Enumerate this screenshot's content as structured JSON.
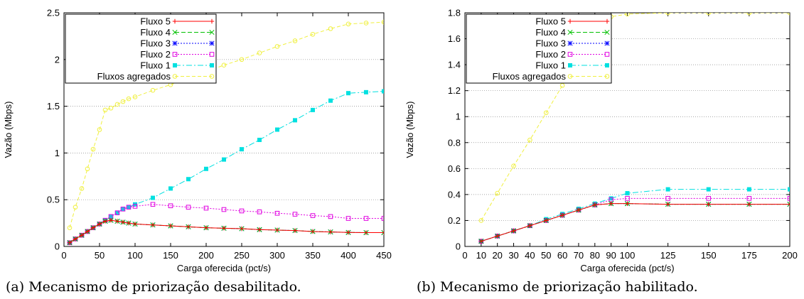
{
  "chart_data": [
    {
      "type": "line",
      "xlabel": "Carga oferecida (pct/s)",
      "ylabel": "Vazão (Mbps)",
      "xlim": [
        0,
        450
      ],
      "ylim": [
        0,
        2.5
      ],
      "xticks": [
        0,
        50,
        100,
        150,
        200,
        250,
        300,
        350,
        400,
        450
      ],
      "yticks": [
        0,
        0.5,
        1,
        1.5,
        2,
        2.5
      ],
      "ytick_labels": [
        "0",
        "0.5",
        "1",
        "1.5",
        "2",
        "2.5"
      ],
      "grid": "horizontal dotted",
      "legend_position": "top-left",
      "caption": "(a) Mecanismo de priorização desabilitado.",
      "series": [
        {
          "name": "Fluxo 5",
          "color": "#ff0000",
          "marker": "plus",
          "dash": "",
          "x": [
            8,
            16,
            25,
            33,
            41,
            50,
            58,
            66,
            75,
            83,
            91,
            100,
            125,
            150,
            175,
            200,
            225,
            250,
            275,
            300,
            325,
            350,
            375,
            400,
            425,
            450
          ],
          "y": [
            0.04,
            0.08,
            0.12,
            0.16,
            0.2,
            0.24,
            0.27,
            0.28,
            0.27,
            0.26,
            0.25,
            0.24,
            0.23,
            0.22,
            0.21,
            0.2,
            0.195,
            0.19,
            0.18,
            0.175,
            0.17,
            0.16,
            0.155,
            0.15,
            0.148,
            0.148
          ]
        },
        {
          "name": "Fluxo 4",
          "color": "#00c000",
          "marker": "x",
          "dash": "6,3",
          "x": [
            8,
            16,
            25,
            33,
            41,
            50,
            58,
            66,
            75,
            83,
            91,
            100,
            125,
            150,
            175,
            200,
            225,
            250,
            275,
            300,
            325,
            350,
            375,
            400,
            425,
            450
          ],
          "y": [
            0.04,
            0.08,
            0.12,
            0.16,
            0.2,
            0.24,
            0.27,
            0.28,
            0.27,
            0.26,
            0.25,
            0.24,
            0.23,
            0.22,
            0.21,
            0.2,
            0.195,
            0.19,
            0.18,
            0.175,
            0.17,
            0.16,
            0.155,
            0.15,
            0.148,
            0.148
          ]
        },
        {
          "name": "Fluxo 3",
          "color": "#0000ff",
          "marker": "star",
          "dash": "2,2",
          "x": [
            8,
            16,
            25,
            33,
            41,
            50,
            58,
            66,
            75,
            83,
            91,
            100,
            125,
            150,
            175,
            200,
            225,
            250,
            275,
            300,
            325,
            350,
            375,
            400,
            425,
            450
          ],
          "y": [
            0.04,
            0.08,
            0.12,
            0.16,
            0.2,
            0.24,
            0.27,
            0.28,
            0.27,
            0.26,
            0.25,
            0.24,
            0.23,
            0.22,
            0.21,
            0.2,
            0.195,
            0.19,
            0.18,
            0.175,
            0.17,
            0.16,
            0.155,
            0.15,
            0.148,
            0.148
          ]
        },
        {
          "name": "Fluxo 2",
          "color": "#e000e0",
          "marker": "square-open",
          "dash": "2,2",
          "x": [
            8,
            16,
            25,
            33,
            41,
            50,
            58,
            66,
            75,
            83,
            91,
            100,
            125,
            150,
            175,
            200,
            225,
            250,
            275,
            300,
            325,
            350,
            375,
            400,
            425,
            450
          ],
          "y": [
            0.04,
            0.08,
            0.12,
            0.16,
            0.2,
            0.24,
            0.28,
            0.32,
            0.36,
            0.4,
            0.42,
            0.43,
            0.45,
            0.435,
            0.42,
            0.41,
            0.395,
            0.38,
            0.37,
            0.355,
            0.345,
            0.33,
            0.32,
            0.3,
            0.3,
            0.3
          ]
        },
        {
          "name": "Fluxo 1",
          "color": "#00e0e0",
          "marker": "square",
          "dash": "8,3,2,3",
          "x": [
            8,
            16,
            25,
            33,
            41,
            50,
            58,
            66,
            75,
            83,
            91,
            100,
            125,
            150,
            175,
            200,
            225,
            250,
            275,
            300,
            325,
            350,
            375,
            400,
            425,
            450
          ],
          "y": [
            0.04,
            0.08,
            0.12,
            0.16,
            0.2,
            0.24,
            0.28,
            0.32,
            0.36,
            0.4,
            0.42,
            0.45,
            0.52,
            0.62,
            0.72,
            0.83,
            0.93,
            1.04,
            1.14,
            1.25,
            1.35,
            1.46,
            1.56,
            1.64,
            1.65,
            1.66
          ]
        },
        {
          "name": "Fluxos agregados",
          "color": "#f0f040",
          "marker": "circle-open",
          "dash": "5,3",
          "x": [
            8,
            16,
            25,
            33,
            41,
            50,
            58,
            66,
            75,
            83,
            91,
            100,
            125,
            150,
            175,
            200,
            225,
            250,
            275,
            300,
            325,
            350,
            375,
            400,
            425,
            450
          ],
          "y": [
            0.2,
            0.42,
            0.62,
            0.83,
            1.04,
            1.25,
            1.46,
            1.48,
            1.52,
            1.55,
            1.58,
            1.6,
            1.67,
            1.73,
            1.8,
            1.87,
            1.94,
            2.0,
            2.07,
            2.14,
            2.2,
            2.27,
            2.33,
            2.38,
            2.39,
            2.4
          ]
        }
      ]
    },
    {
      "type": "line",
      "xlabel": "Carga oferecida (pct/s)",
      "ylabel": "Vazão (Mbps)",
      "xlim": [
        0,
        200
      ],
      "ylim": [
        0,
        1.8
      ],
      "xticks": [
        0,
        10,
        20,
        30,
        40,
        50,
        60,
        70,
        80,
        90,
        100,
        125,
        150,
        175,
        200
      ],
      "xtick_labels": [
        "0",
        "10",
        "20",
        "30",
        "40",
        "50",
        "60",
        "70",
        "80",
        "90",
        "100",
        "125",
        "150",
        "175",
        "200"
      ],
      "yticks": [
        0,
        0.2,
        0.4,
        0.6,
        0.8,
        1,
        1.2,
        1.4,
        1.6,
        1.8
      ],
      "ytick_labels": [
        "0",
        "0.2",
        "0.4",
        "0.6",
        "0.8",
        "1",
        "1.2",
        "1.4",
        "1.6",
        "1.8"
      ],
      "grid": "horizontal dotted",
      "legend_position": "top-left",
      "caption": "(b) Mecanismo de priorização habilitado.",
      "series": [
        {
          "name": "Fluxo 5",
          "color": "#ff0000",
          "marker": "plus",
          "dash": "",
          "x": [
            10,
            20,
            30,
            40,
            50,
            60,
            70,
            80,
            90,
            100,
            125,
            150,
            175,
            200
          ],
          "y": [
            0.04,
            0.08,
            0.12,
            0.16,
            0.2,
            0.24,
            0.28,
            0.32,
            0.33,
            0.33,
            0.325,
            0.325,
            0.325,
            0.325
          ]
        },
        {
          "name": "Fluxo 4",
          "color": "#00c000",
          "marker": "x",
          "dash": "6,3",
          "x": [
            10,
            20,
            30,
            40,
            50,
            60,
            70,
            80,
            90,
            100,
            125,
            150,
            175,
            200
          ],
          "y": [
            0.04,
            0.08,
            0.12,
            0.16,
            0.2,
            0.24,
            0.28,
            0.32,
            0.33,
            0.33,
            0.325,
            0.325,
            0.325,
            0.325
          ]
        },
        {
          "name": "Fluxo 3",
          "color": "#0000ff",
          "marker": "star",
          "dash": "2,2",
          "x": [
            10,
            20,
            30,
            40,
            50,
            60,
            70,
            80,
            90,
            100,
            125,
            150,
            175,
            200
          ],
          "y": [
            0.04,
            0.08,
            0.12,
            0.16,
            0.2,
            0.24,
            0.28,
            0.32,
            0.33,
            0.33,
            0.325,
            0.325,
            0.325,
            0.325
          ]
        },
        {
          "name": "Fluxo 2",
          "color": "#e000e0",
          "marker": "square-open",
          "dash": "2,2",
          "x": [
            10,
            20,
            30,
            40,
            50,
            60,
            70,
            80,
            90,
            100,
            125,
            150,
            175,
            200
          ],
          "y": [
            0.04,
            0.08,
            0.12,
            0.16,
            0.2,
            0.24,
            0.28,
            0.32,
            0.36,
            0.37,
            0.37,
            0.37,
            0.37,
            0.37
          ]
        },
        {
          "name": "Fluxo 1",
          "color": "#00e0e0",
          "marker": "square",
          "dash": "8,3,2,3",
          "x": [
            10,
            20,
            30,
            40,
            50,
            60,
            70,
            80,
            90,
            100,
            125,
            150,
            175,
            200
          ],
          "y": [
            0.04,
            0.08,
            0.12,
            0.16,
            0.21,
            0.25,
            0.29,
            0.33,
            0.37,
            0.41,
            0.44,
            0.44,
            0.44,
            0.44
          ]
        },
        {
          "name": "Fluxos agregados",
          "color": "#f0f040",
          "marker": "circle-open",
          "dash": "5,3",
          "x": [
            10,
            20,
            30,
            40,
            50,
            60,
            70,
            80,
            90,
            100,
            125,
            150,
            175,
            200
          ],
          "y": [
            0.2,
            0.41,
            0.62,
            0.82,
            1.03,
            1.24,
            1.45,
            1.66,
            1.77,
            1.79,
            1.8,
            1.8,
            1.8,
            1.8
          ]
        }
      ]
    }
  ]
}
